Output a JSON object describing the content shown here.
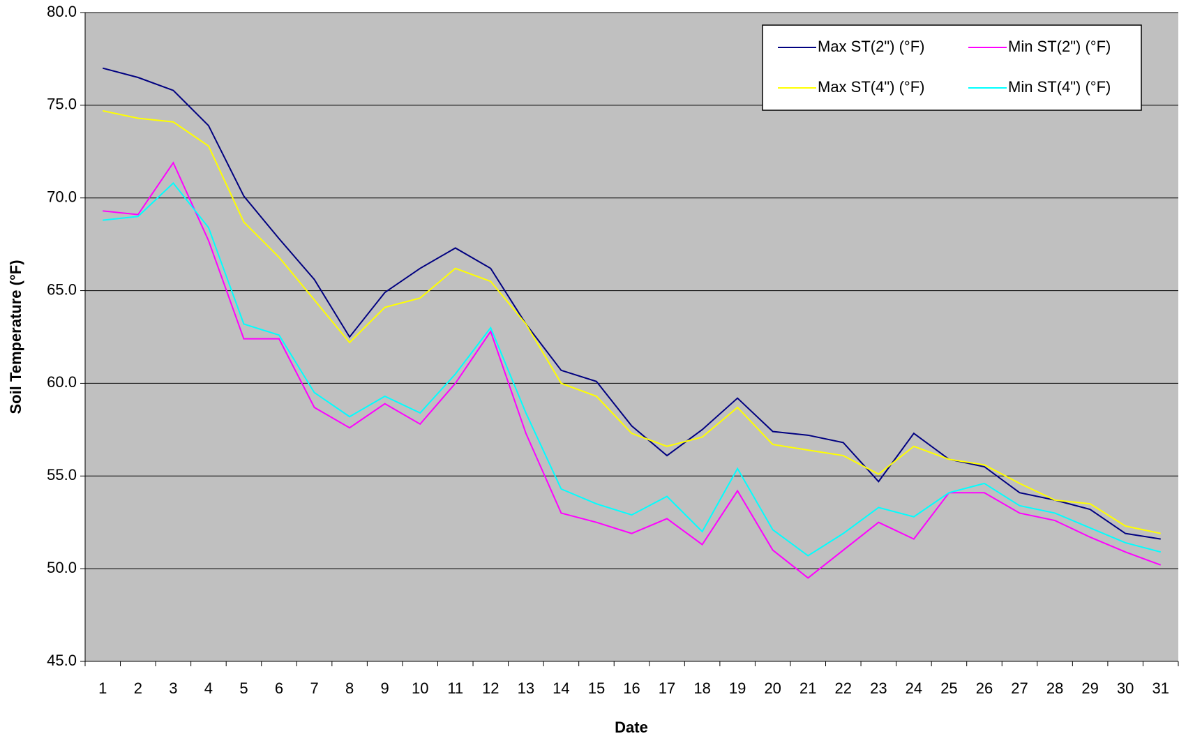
{
  "chart_data": {
    "type": "line",
    "x_label": "Date",
    "y_label": "Soil Temperature (°F)",
    "categories": [
      "1",
      "2",
      "3",
      "4",
      "5",
      "6",
      "7",
      "8",
      "9",
      "10",
      "11",
      "12",
      "13",
      "14",
      "15",
      "16",
      "17",
      "18",
      "19",
      "20",
      "21",
      "22",
      "23",
      "24",
      "25",
      "26",
      "27",
      "28",
      "29",
      "30",
      "31"
    ],
    "ylim": [
      45,
      80
    ],
    "yticks": [
      {
        "value": 45,
        "label": "45.0"
      },
      {
        "value": 50,
        "label": "50.0"
      },
      {
        "value": 55,
        "label": "55.0"
      },
      {
        "value": 60,
        "label": "60.0"
      },
      {
        "value": 65,
        "label": "65.0"
      },
      {
        "value": 70,
        "label": "70.0"
      },
      {
        "value": 75,
        "label": "75.0"
      },
      {
        "value": 80,
        "label": "80.0"
      }
    ],
    "grid": true,
    "background": "#c0c0c0",
    "legend": "upper right",
    "series": [
      {
        "name": "Max ST(2\") (°F)",
        "color": "#000080",
        "values": [
          77.0,
          76.5,
          75.8,
          73.9,
          70.1,
          67.8,
          65.6,
          62.5,
          64.9,
          66.2,
          67.3,
          66.2,
          63.2,
          60.7,
          60.1,
          57.7,
          56.1,
          57.5,
          59.2,
          57.4,
          57.2,
          56.8,
          54.7,
          57.3,
          55.9,
          55.5,
          54.1,
          53.7,
          53.2,
          51.9,
          51.6
        ]
      },
      {
        "name": "Min ST(2\") (°F)",
        "color": "#ff00ff",
        "values": [
          69.3,
          69.1,
          71.9,
          67.7,
          62.4,
          62.4,
          58.7,
          57.6,
          58.9,
          57.8,
          60.0,
          62.8,
          57.3,
          53.0,
          52.5,
          51.9,
          52.7,
          51.3,
          54.2,
          51.0,
          49.5,
          51.0,
          52.5,
          51.6,
          54.1,
          54.1,
          53.0,
          52.6,
          51.7,
          50.9,
          50.2
        ]
      },
      {
        "name": "Max ST(4\") (°F)",
        "color": "#ffff00",
        "values": [
          74.7,
          74.3,
          74.1,
          72.8,
          68.7,
          66.8,
          64.5,
          62.2,
          64.1,
          64.6,
          66.2,
          65.5,
          63.2,
          60.0,
          59.3,
          57.3,
          56.6,
          57.1,
          58.7,
          56.7,
          56.4,
          56.1,
          55.1,
          56.6,
          55.9,
          55.6,
          54.6,
          53.7,
          53.5,
          52.3,
          51.9
        ]
      },
      {
        "name": "Min ST(4\") (°F)",
        "color": "#00ffff",
        "values": [
          68.8,
          69.0,
          70.8,
          68.4,
          63.2,
          62.6,
          59.5,
          58.2,
          59.3,
          58.4,
          60.5,
          63.0,
          58.4,
          54.3,
          53.5,
          52.9,
          53.9,
          52.0,
          55.4,
          52.1,
          50.7,
          51.9,
          53.3,
          52.8,
          54.1,
          54.6,
          53.4,
          53.0,
          52.2,
          51.4,
          50.9
        ]
      }
    ]
  }
}
